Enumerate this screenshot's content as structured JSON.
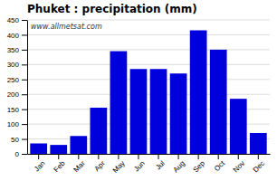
{
  "chart_data": {
    "type": "bar",
    "title": "Phuket : precipitation (mm)",
    "categories": [
      "Jan",
      "Feb",
      "Mar",
      "Apr",
      "May",
      "Jun",
      "Jul",
      "Aug",
      "Sep",
      "Oct",
      "Nov",
      "Dec"
    ],
    "values": [
      35,
      30,
      60,
      155,
      345,
      285,
      285,
      270,
      415,
      350,
      185,
      70
    ],
    "color": "#0000dd",
    "ylim": [
      0,
      450
    ],
    "yticks": [
      0,
      50,
      100,
      150,
      200,
      250,
      300,
      350,
      400,
      450
    ],
    "grid": true,
    "annotations": [
      "www.allmetsat.com"
    ]
  }
}
